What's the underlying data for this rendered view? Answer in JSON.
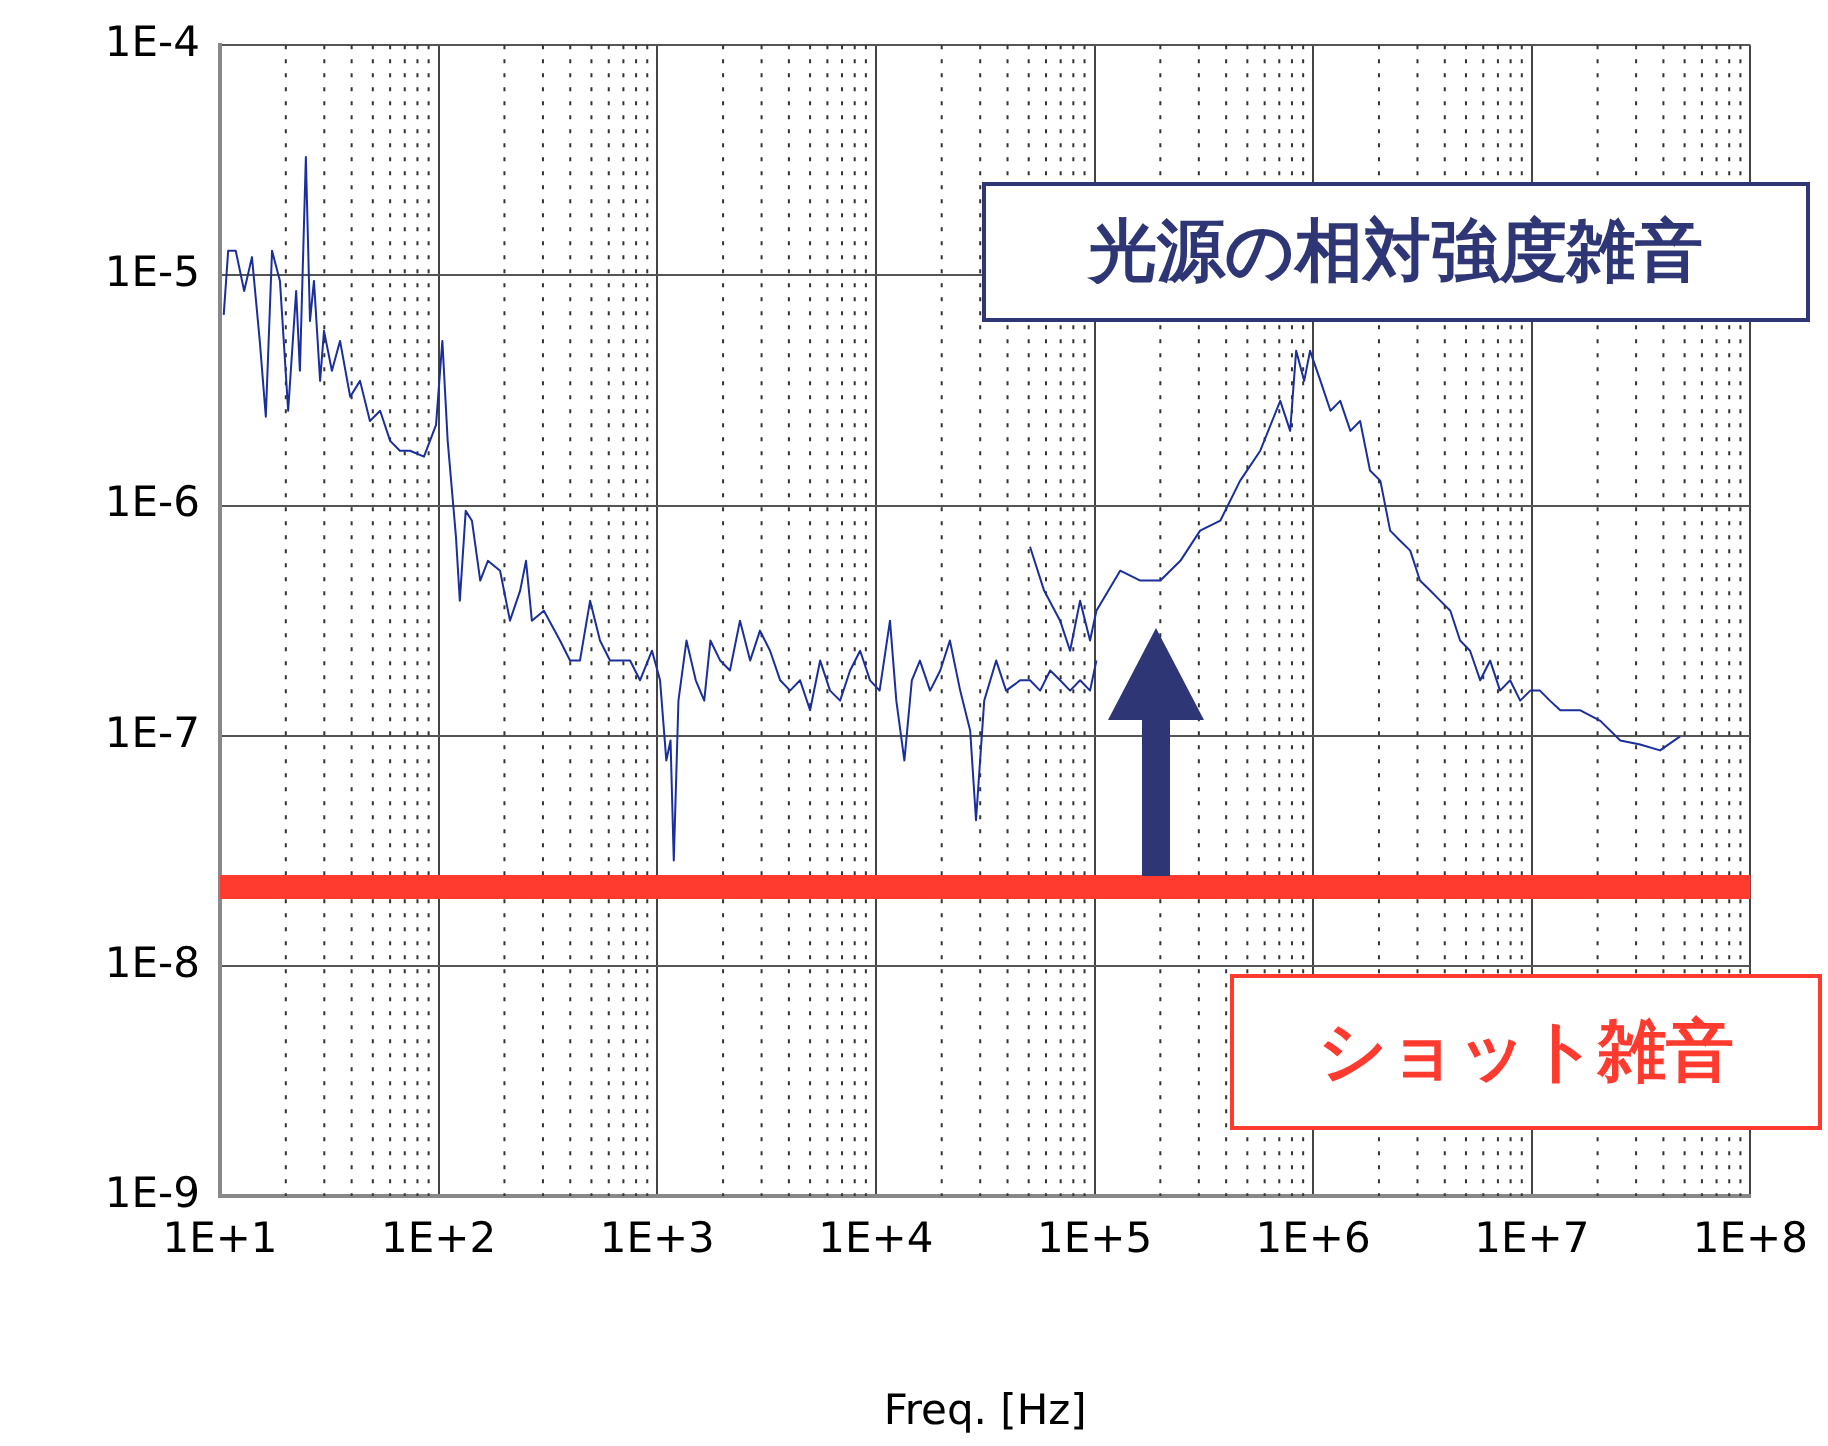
{
  "chart_data": {
    "type": "line",
    "xlabel": "Freq. [Hz]",
    "log": "xy",
    "grid": true,
    "legend": false,
    "marker": "none",
    "line_style": "solid",
    "xlim": [
      10,
      100000000
    ],
    "ylim": [
      1e-09,
      0.0001
    ],
    "xticks": [
      {
        "value": 10,
        "label": "1E+1"
      },
      {
        "value": 100,
        "label": "1E+2"
      },
      {
        "value": 1000,
        "label": "1E+3"
      },
      {
        "value": 10000,
        "label": "1E+4"
      },
      {
        "value": 100000,
        "label": "1E+5"
      },
      {
        "value": 1000000,
        "label": "1E+6"
      },
      {
        "value": 10000000,
        "label": "1E+7"
      },
      {
        "value": 100000000,
        "label": "1E+8"
      }
    ],
    "yticks": [
      {
        "value": 1e-09,
        "label": "1E-9"
      },
      {
        "value": 1e-08,
        "label": "1E-8"
      },
      {
        "value": 1e-07,
        "label": "1E-7"
      },
      {
        "value": 1e-06,
        "label": "1E-6"
      },
      {
        "value": 1e-05,
        "label": "1E-5"
      },
      {
        "value": 0.0001,
        "label": "1E-4"
      }
    ],
    "ref_lines": [
      {
        "axis": "y",
        "value": 2.2e-08,
        "color": "#ff3b2f"
      }
    ],
    "annotations": [
      "光源の相対強度雑音",
      "ショット雑音"
    ],
    "series": [
      {
        "color": "#1a2f9c",
        "x": [
          10.4,
          10.9,
          11.8,
          12.9,
          14.0,
          15.2,
          16.2,
          17.3,
          18.8,
          20.5,
          22.3,
          23.2,
          24.7,
          25.8,
          26.9,
          28.7,
          29.9,
          32.5,
          35.4,
          39.4,
          43.7,
          48.5,
          54.0,
          60.0,
          66.5,
          74.0,
          85.7,
          97.3,
          104,
          110,
          120,
          125,
          133,
          142,
          155,
          168,
          191,
          212,
          236,
          251,
          267,
          303,
          359,
          399,
          443,
          493,
          547,
          608,
          751,
          834,
          946,
          1030,
          1100,
          1150,
          1190,
          1250,
          1360,
          1500,
          1640,
          1750,
          1940,
          2150,
          2390,
          2660,
          2950,
          3280,
          3650,
          4050,
          4500,
          5000,
          5560,
          6170,
          6860,
          7620,
          8470,
          9400,
          10400,
          11600,
          12400,
          13500,
          14600,
          15900,
          17700,
          19700,
          21800,
          24300,
          27000,
          28700,
          31300,
          35500,
          39400,
          45700,
          50700,
          56400,
          62700,
          69600,
          77300,
          85900,
          95400,
          102000
        ],
        "values": [
          6.73e-06,
          1.28e-05,
          1.28e-05,
          8.55e-06,
          1.2e-05,
          5.19e-06,
          2.43e-06,
          1.28e-05,
          9.46e-06,
          2.58e-06,
          8.55e-06,
          3.85e-06,
          3.27e-05,
          6.34e-06,
          9.46e-06,
          3.48e-06,
          5.74e-06,
          3.85e-06,
          5.19e-06,
          2.97e-06,
          3.48e-06,
          2.33e-06,
          2.58e-06,
          1.91e-06,
          1.73e-06,
          1.73e-06,
          1.63e-06,
          2.24e-06,
          5.19e-06,
          1.91e-06,
          7.33e-07,
          3.86e-07,
          9.48e-07,
          8.59e-07,
          4.72e-07,
          5.75e-07,
          5.21e-07,
          3.16e-07,
          4.27e-07,
          5.75e-07,
          3.16e-07,
          3.49e-07,
          2.59e-07,
          2.12e-07,
          2.12e-07,
          3.86e-07,
          2.59e-07,
          2.12e-07,
          2.12e-07,
          1.74e-07,
          2.34e-07,
          1.74e-07,
          7.8e-08,
          9.53e-08,
          2.87e-08,
          1.42e-07,
          2.59e-07,
          1.74e-07,
          1.42e-07,
          2.59e-07,
          2.12e-07,
          1.92e-07,
          3.16e-07,
          2.12e-07,
          2.86e-07,
          2.34e-07,
          1.74e-07,
          1.57e-07,
          1.74e-07,
          1.29e-07,
          2.12e-07,
          1.57e-07,
          1.42e-07,
          1.92e-07,
          2.34e-07,
          1.74e-07,
          1.57e-07,
          3.16e-07,
          1.42e-07,
          7.8e-08,
          1.74e-07,
          2.12e-07,
          1.57e-07,
          1.92e-07,
          2.59e-07,
          1.57e-07,
          1.05e-07,
          4.29e-08,
          1.42e-07,
          2.12e-07,
          1.57e-07,
          1.74e-07,
          1.74e-07,
          1.57e-07,
          1.92e-07,
          1.74e-07,
          1.57e-07,
          1.74e-07,
          1.57e-07,
          2.12e-07
        ]
      },
      {
        "color": "#1a2f9c",
        "x": [
          50700,
          58800,
          69600,
          77300,
          85900,
          95400,
          102000,
          131000,
          162000,
          200000,
          247000,
          304000,
          376000,
          463000,
          573000,
          707000,
          785000,
          836000,
          910000,
          968000,
          1080000,
          1200000,
          1330000,
          1480000,
          1640000,
          1820000,
          2030000,
          2250000,
          2500000,
          2780000,
          3080000,
          3430000,
          3810000,
          4240000,
          4700000,
          5220000,
          5810000,
          6450000,
          7160000,
          7960000,
          8850000,
          9840000,
          10900000,
          12100000,
          13500000,
          16600000,
          20600000,
          25400000,
          31300000,
          38600000,
          47700000
        ],
        "values": [
          6.62e-07,
          4.27e-07,
          3.16e-07,
          2.34e-07,
          3.86e-07,
          2.59e-07,
          3.49e-07,
          5.21e-07,
          4.72e-07,
          4.72e-07,
          5.75e-07,
          7.78e-07,
          8.59e-07,
          1.28e-06,
          1.73e-06,
          2.85e-06,
          2.11e-06,
          4.7e-06,
          3.48e-06,
          4.7e-06,
          3.48e-06,
          2.58e-06,
          2.85e-06,
          2.11e-06,
          2.33e-06,
          1.42e-06,
          1.28e-06,
          7.78e-07,
          7.03e-07,
          6.37e-07,
          4.72e-07,
          4.27e-07,
          3.86e-07,
          3.49e-07,
          2.59e-07,
          2.34e-07,
          1.74e-07,
          2.12e-07,
          1.57e-07,
          1.74e-07,
          1.42e-07,
          1.57e-07,
          1.57e-07,
          1.42e-07,
          1.29e-07,
          1.29e-07,
          1.16e-07,
          9.53e-08,
          9.16e-08,
          8.63e-08,
          9.93e-08
        ]
      }
    ]
  }
}
